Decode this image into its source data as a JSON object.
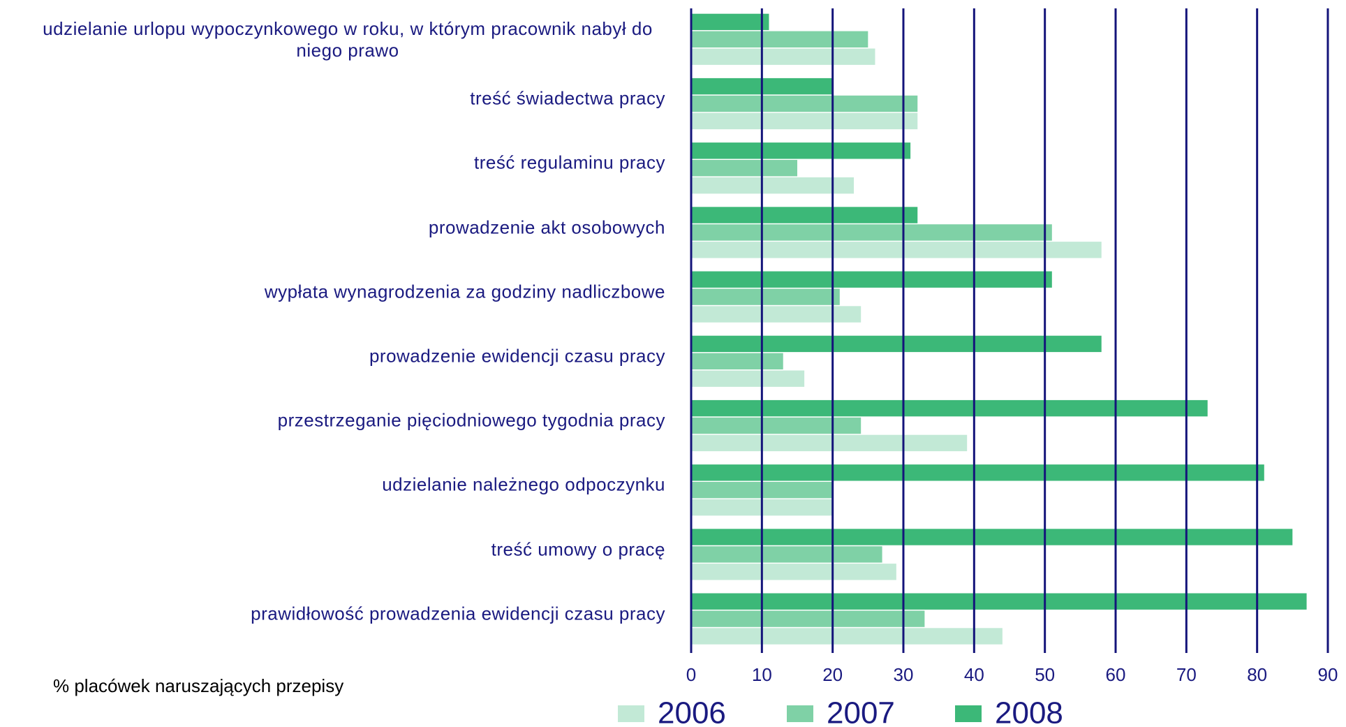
{
  "chart_data": {
    "type": "barh",
    "categories": [
      "udzielanie urlopu wypoczynkowego w roku, w którym pracownik nabył do niego prawo",
      "treść świadectwa pracy",
      "treść regulaminu pracy",
      "prowadzenie akt osobowych",
      "wypłata wynagrodzenia za godziny nadliczbowe",
      "prowadzenie ewidencji czasu pracy",
      "przestrzeganie pięciodniowego tygodnia pracy",
      "udzielanie należnego odpoczynku",
      "treść umowy o pracę",
      "prawidłowość prowadzenia ewidencji czasu pracy"
    ],
    "series": [
      {
        "name": "2006",
        "color": "#c2e9d6",
        "values": [
          26,
          32,
          23,
          58,
          24,
          16,
          39,
          20,
          29,
          44
        ]
      },
      {
        "name": "2007",
        "color": "#7fd1a6",
        "values": [
          25,
          32,
          15,
          51,
          21,
          13,
          24,
          20,
          27,
          33
        ]
      },
      {
        "name": "2008",
        "color": "#3cb878",
        "values": [
          11,
          20,
          31,
          32,
          51,
          58,
          73,
          81,
          85,
          87
        ]
      }
    ],
    "xlabel": "% placówek naruszających przepisy",
    "xlim": [
      0,
      90
    ],
    "xticks": [
      0,
      10,
      20,
      30,
      40,
      50,
      60,
      70,
      80,
      90
    ],
    "grid": true,
    "legend": "bottom"
  }
}
